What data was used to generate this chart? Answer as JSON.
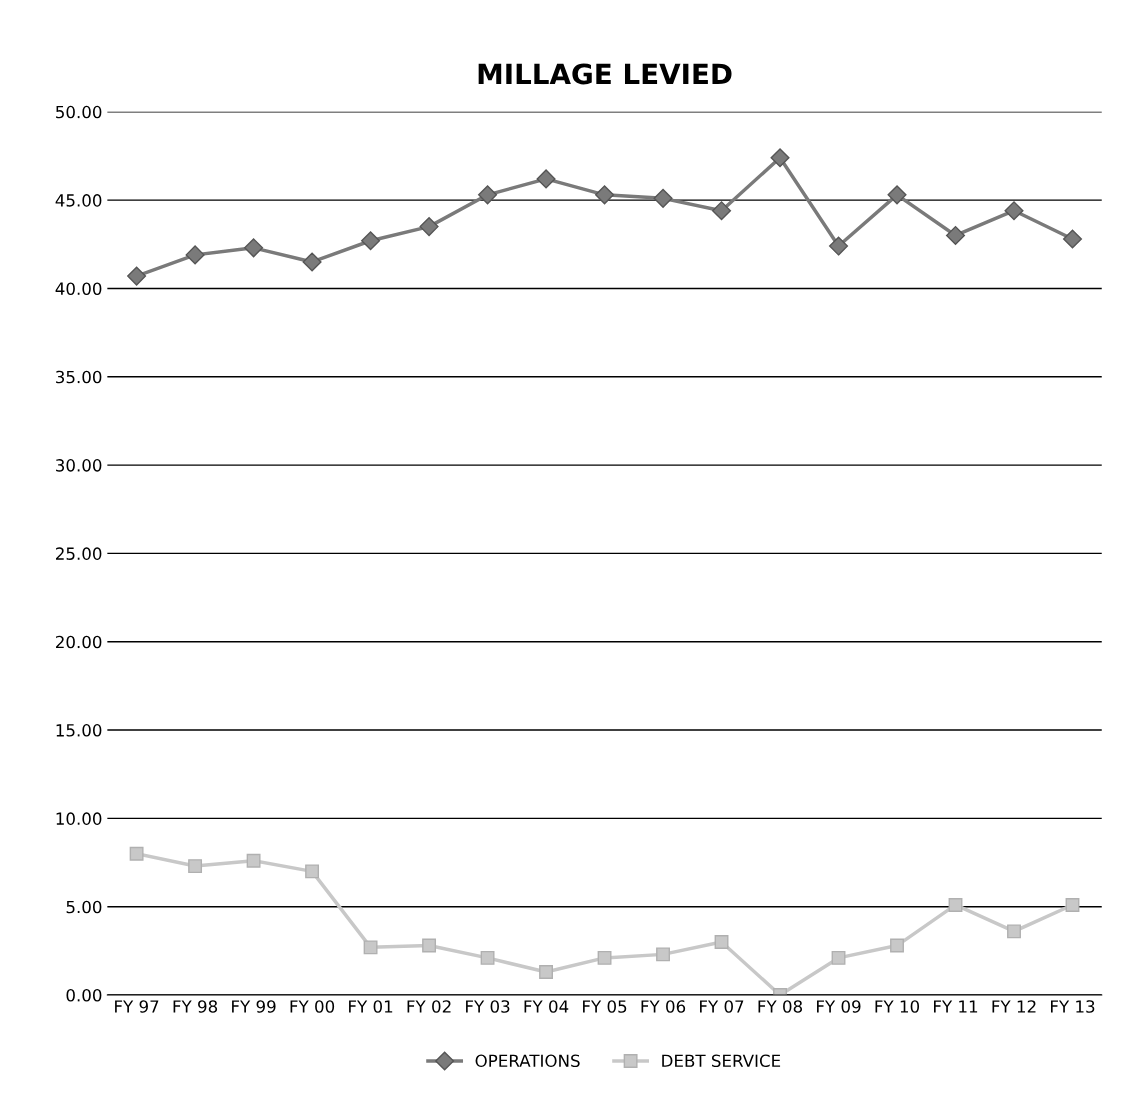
{
  "chart_data": {
    "type": "line",
    "title": "MILLAGE LEVIED",
    "categories": [
      "FY 97",
      "FY 98",
      "FY 99",
      "FY 00",
      "FY 01",
      "FY 02",
      "FY 03",
      "FY 04",
      "FY 05",
      "FY 06",
      "FY 07",
      "FY 08",
      "FY 09",
      "FY 10",
      "FY 11",
      "FY 12",
      "FY 13"
    ],
    "series": [
      {
        "name": "OPERATIONS",
        "color": "#7a7a7a",
        "marker": "diamond",
        "values": [
          40.7,
          41.9,
          42.3,
          41.5,
          42.7,
          43.5,
          45.3,
          46.2,
          45.3,
          45.1,
          44.4,
          47.4,
          42.4,
          45.3,
          43.0,
          44.4,
          42.8
        ]
      },
      {
        "name": "DEBT SERVICE",
        "color": "#c8c8c8",
        "marker": "square",
        "values": [
          8.0,
          7.3,
          7.6,
          7.0,
          2.7,
          2.8,
          2.1,
          1.3,
          2.1,
          2.3,
          3.0,
          0.0,
          2.1,
          2.8,
          5.1,
          3.6,
          5.1
        ]
      }
    ],
    "ylim": [
      0,
      50
    ],
    "yticks": [
      {
        "value": 0,
        "label": "0.00"
      },
      {
        "value": 5,
        "label": "5.00"
      },
      {
        "value": 10,
        "label": "10.00"
      },
      {
        "value": 15,
        "label": "15.00"
      },
      {
        "value": 20,
        "label": "20.00"
      },
      {
        "value": 25,
        "label": "25.00"
      },
      {
        "value": 30,
        "label": "30.00"
      },
      {
        "value": 35,
        "label": "35.00"
      },
      {
        "value": 40,
        "label": "40.00"
      },
      {
        "value": 45,
        "label": "45.00"
      },
      {
        "value": 50,
        "label": "50.00"
      }
    ],
    "grid": "y",
    "legend": "bottom",
    "line_style": "solid"
  }
}
